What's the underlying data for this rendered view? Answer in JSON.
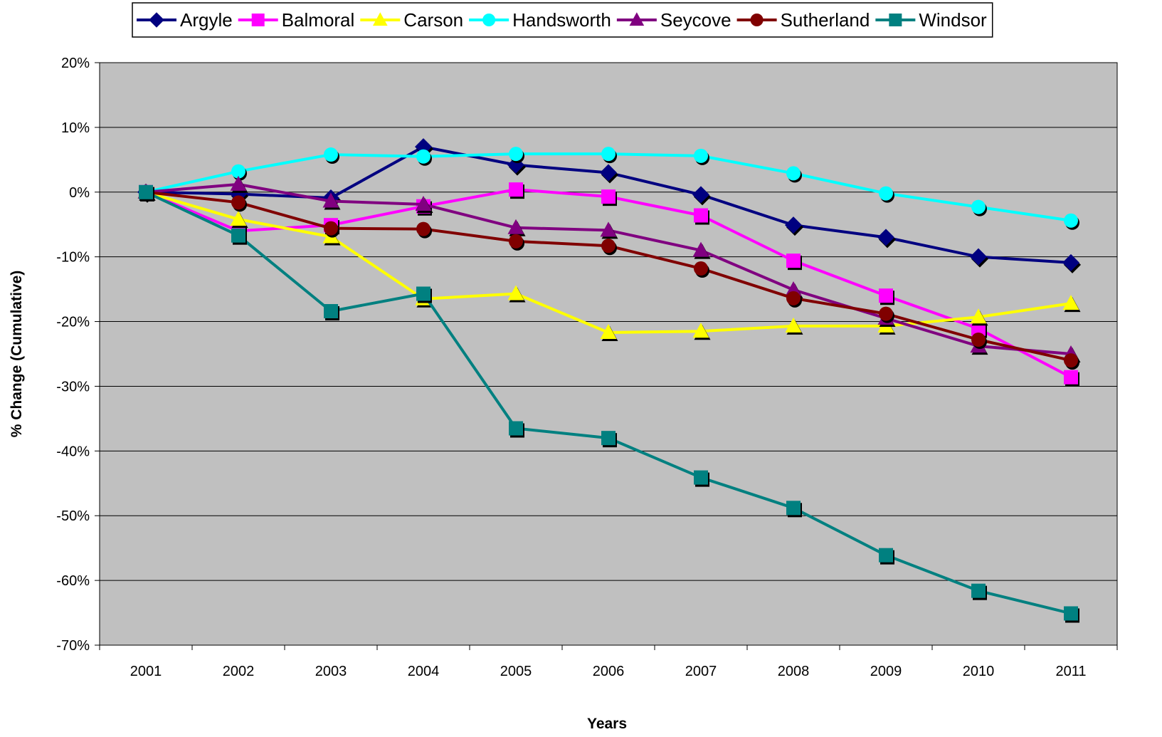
{
  "chart_data": {
    "type": "line",
    "x_label": "Years",
    "y_label": "% Change (Cumulative)",
    "categories": [
      "2001",
      "2002",
      "2003",
      "2004",
      "2005",
      "2006",
      "2007",
      "2008",
      "2009",
      "2010",
      "2011"
    ],
    "ylim": [
      -70,
      20
    ],
    "yticks": [
      {
        "value": -70,
        "label": "-70%"
      },
      {
        "value": -60,
        "label": "-60%"
      },
      {
        "value": -50,
        "label": "-50%"
      },
      {
        "value": -40,
        "label": "-40%"
      },
      {
        "value": -30,
        "label": "-30%"
      },
      {
        "value": -20,
        "label": "-20%"
      },
      {
        "value": -10,
        "label": "-10%"
      },
      {
        "value": 0,
        "label": "0%"
      },
      {
        "value": 10,
        "label": "10%"
      },
      {
        "value": 20,
        "label": "20%"
      }
    ],
    "grid": true,
    "legend": "top",
    "plot_background": "#c0c0c0",
    "series": [
      {
        "name": "Argyle",
        "color": "#000080",
        "marker": "diamond",
        "values": [
          0,
          -0.3,
          -0.9,
          7.0,
          4.2,
          3.0,
          -0.4,
          -5.1,
          -7.0,
          -10.0,
          -10.9
        ]
      },
      {
        "name": "Balmoral",
        "color": "#ff00ff",
        "marker": "square",
        "values": [
          0,
          -6.0,
          -5.1,
          -2.2,
          0.4,
          -0.7,
          -3.6,
          -10.6,
          -16.0,
          -21.1,
          -28.6
        ]
      },
      {
        "name": "Carson",
        "color": "#ffff00",
        "marker": "triangle",
        "values": [
          0,
          -4.2,
          -6.9,
          -16.5,
          -15.7,
          -21.7,
          -21.5,
          -20.7,
          -20.7,
          -19.3,
          -17.2
        ]
      },
      {
        "name": "Handsworth",
        "color": "#00ffff",
        "marker": "circle",
        "values": [
          0,
          3.2,
          5.8,
          5.5,
          5.9,
          5.9,
          5.6,
          2.9,
          -0.2,
          -2.3,
          -4.4
        ]
      },
      {
        "name": "Seycove",
        "color": "#800080",
        "marker": "triangle",
        "values": [
          0,
          1.2,
          -1.4,
          -1.9,
          -5.5,
          -5.9,
          -9.0,
          -15.1,
          -19.5,
          -23.8,
          -25.0
        ]
      },
      {
        "name": "Sutherland",
        "color": "#800000",
        "marker": "circle",
        "values": [
          0,
          -1.6,
          -5.6,
          -5.7,
          -7.6,
          -8.3,
          -11.8,
          -16.4,
          -18.8,
          -22.8,
          -26.0
        ]
      },
      {
        "name": "Windsor",
        "color": "#008080",
        "marker": "square",
        "values": [
          0,
          -6.7,
          -18.4,
          -15.7,
          -36.5,
          -38.0,
          -44.1,
          -48.8,
          -56.1,
          -61.6,
          -65.1
        ]
      }
    ]
  }
}
